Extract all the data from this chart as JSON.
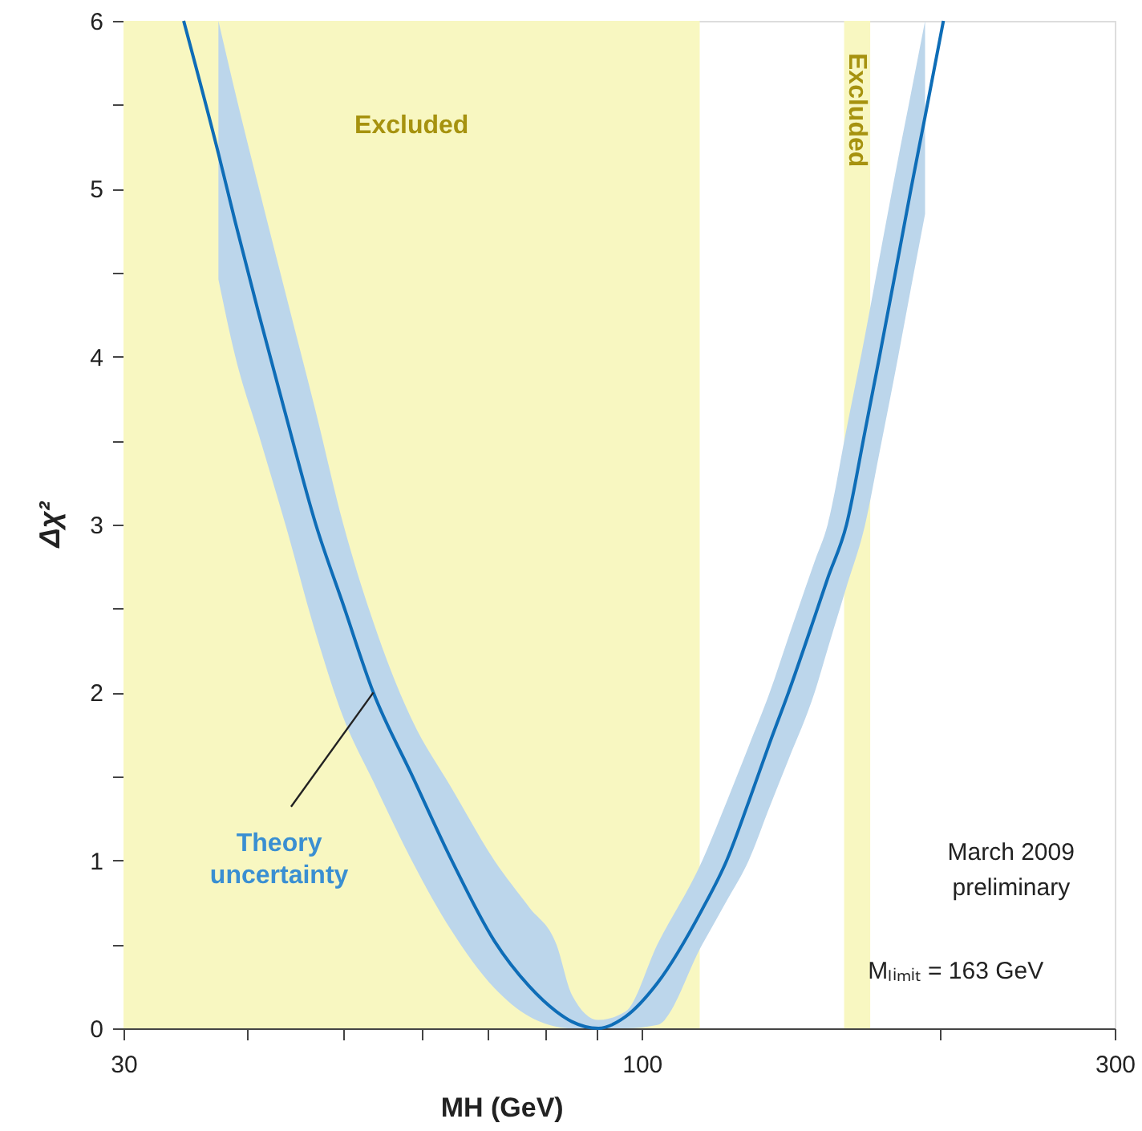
{
  "chart_data": {
    "type": "line",
    "xlabel": "MH (GeV)",
    "ylabel": "Δχ²",
    "log": "x",
    "xlim": [
      30,
      300
    ],
    "ylim": [
      0,
      6
    ],
    "xticks": [
      30,
      {
        "value": 40,
        "label": null
      },
      {
        "value": 50,
        "label": null
      },
      {
        "value": 60,
        "label": null
      },
      {
        "value": 70,
        "label": null
      },
      {
        "value": 80,
        "label": null
      },
      {
        "value": 90,
        "label": null
      },
      100,
      {
        "value": 200,
        "label": null
      },
      300
    ],
    "yticks": [
      0,
      {
        "value": 0.5,
        "label": null
      },
      1,
      {
        "value": 1.5,
        "label": null
      },
      2,
      {
        "value": 2.5,
        "label": null
      },
      3,
      {
        "value": 3.5,
        "label": null
      },
      4,
      {
        "value": 4.5,
        "label": null
      },
      5,
      {
        "value": 5.5,
        "label": null
      },
      6
    ],
    "grid": false,
    "bands": [
      {
        "axis": "x",
        "from": 30,
        "to": 114.4,
        "label": "Excluded",
        "color": "#f8f7c1"
      },
      {
        "axis": "x",
        "from": 160,
        "to": 170,
        "label": "Excluded",
        "color": "#f8f7c1"
      }
    ],
    "series": [
      {
        "color": "#0e6db7",
        "x": [
          34.5,
          37.4,
          38.9,
          41.1,
          43.7,
          46.9,
          50.0,
          53.6,
          58.6,
          64.3,
          71.0,
          77.0,
          82.0,
          85.0,
          90.4,
          96.3,
          103.7,
          115.1,
          121.8,
          128.2,
          134.6,
          140.6,
          149.4,
          154.0,
          160.9,
          168.0,
          173.7,
          181.4,
          186.9,
          193.1,
          201.5
        ],
        "values": [
          6,
          5.21,
          4.8,
          4.25,
          3.66,
          3,
          2.52,
          2,
          1.51,
          1,
          0.52,
          0.25,
          0.1,
          0.04,
          0,
          0.07,
          0.27,
          0.71,
          1,
          1.35,
          1.7,
          2,
          2.45,
          2.68,
          3,
          3.56,
          4,
          4.59,
          5,
          5.43,
          6
        ],
        "lower": [
          null,
          4.46,
          4.0,
          3.53,
          3.0,
          2.35,
          1.85,
          1.47,
          1.0,
          0.58,
          0.24,
          0.07,
          0.01,
          0,
          0,
          0,
          0.02,
          0.5,
          0.76,
          1.0,
          1.32,
          1.6,
          2.0,
          2.26,
          2.63,
          3.0,
          3.43,
          4.0,
          4.41,
          4.85,
          null
        ],
        "upper": [
          null,
          6.0,
          5.57,
          5.0,
          4.38,
          3.67,
          3.0,
          2.42,
          1.84,
          1.43,
          1.0,
          0.72,
          0.5,
          0.2,
          0.05,
          0.1,
          0.5,
          1.0,
          1.35,
          1.68,
          2.0,
          2.33,
          2.78,
          3.0,
          3.57,
          4.13,
          4.59,
          5.18,
          5.57,
          6.0,
          null
        ]
      }
    ],
    "annotations": [
      {
        "text": "Theory uncertainty",
        "x": 53.6,
        "y": 2
      },
      "March 2009",
      "preliminary",
      "Mₗᵢₘᵢₜ = 163 GeV"
    ]
  }
}
